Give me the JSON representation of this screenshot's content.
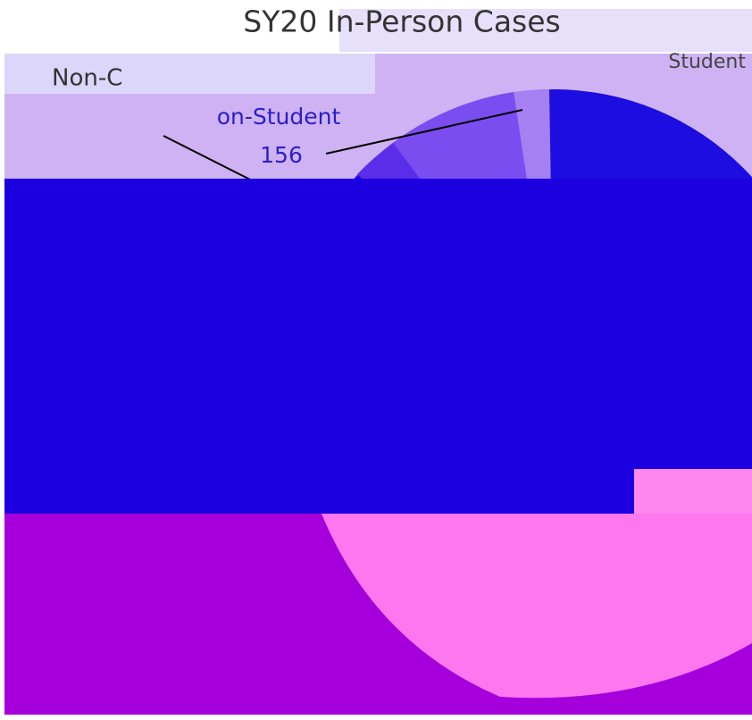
{
  "header": {
    "title": "SY20 In-Person Cases"
  },
  "legend": {
    "fragment": "Non-C"
  },
  "labels": {
    "left_slice": {
      "name": "on-Student",
      "value": "156"
    },
    "top_right": "Student"
  }
}
